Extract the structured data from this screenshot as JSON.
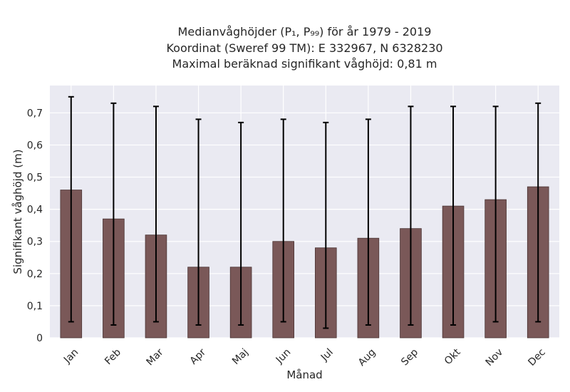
{
  "chart_data": {
    "type": "bar",
    "title_lines": [
      "Medianvåghöjder (P₁, P₉₉) för år 1979 - 2019",
      "Koordinat (Sweref 99 TM): E 332967, N 6328230",
      "Maximal beräknad signifikant våghöjd: 0,81 m"
    ],
    "xlabel": "Månad",
    "ylabel": "Signifikant våghöjd (m)",
    "categories": [
      "Jan",
      "Feb",
      "Mar",
      "Apr",
      "Maj",
      "Jun",
      "Jul",
      "Aug",
      "Sep",
      "Okt",
      "Nov",
      "Dec"
    ],
    "values": [
      0.46,
      0.37,
      0.32,
      0.22,
      0.22,
      0.3,
      0.28,
      0.31,
      0.34,
      0.41,
      0.43,
      0.47
    ],
    "error_low": [
      0.05,
      0.04,
      0.05,
      0.04,
      0.04,
      0.05,
      0.03,
      0.04,
      0.04,
      0.04,
      0.05,
      0.05
    ],
    "error_high": [
      0.75,
      0.73,
      0.72,
      0.68,
      0.67,
      0.68,
      0.67,
      0.68,
      0.72,
      0.72,
      0.72,
      0.73
    ],
    "ylim": [
      0,
      0.785
    ],
    "yticks": [
      0,
      0.1,
      0.2,
      0.3,
      0.4,
      0.5,
      0.6,
      0.7
    ],
    "ytick_labels": [
      "0",
      "0,1",
      "0,2",
      "0,3",
      "0,4",
      "0,5",
      "0,6",
      "0,7"
    ],
    "grid": true,
    "colors": {
      "bar": "#7a5858",
      "bar_edge": "#4a3434",
      "error": "#000000",
      "plot_bg": "#eaeaf2",
      "grid": "#ffffff"
    }
  }
}
